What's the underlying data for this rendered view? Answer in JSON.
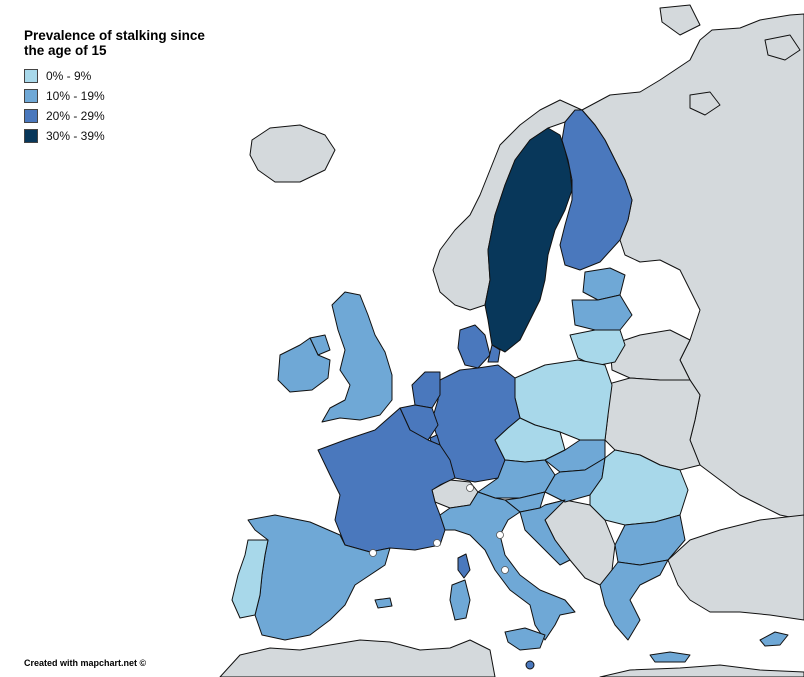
{
  "legend": {
    "title": "Prevalence of stalking since the age of 15",
    "items": [
      {
        "label": "0% - 9%",
        "color": "#a8d8ea"
      },
      {
        "label": "10% - 19%",
        "color": "#6fa8d6"
      },
      {
        "label": "20% - 29%",
        "color": "#4a78bd"
      },
      {
        "label": "30% - 39%",
        "color": "#08375a"
      }
    ]
  },
  "credit": "Created with mapchart.net ©",
  "colors": {
    "no_data": "#d4d9dc",
    "sea": "#ffffff",
    "border": "#111111"
  },
  "map": {
    "countries": [
      {
        "name": "Sweden",
        "category": "30% - 39%"
      },
      {
        "name": "Finland",
        "category": "20% - 29%"
      },
      {
        "name": "Denmark",
        "category": "20% - 29%"
      },
      {
        "name": "Netherlands",
        "category": "20% - 29%"
      },
      {
        "name": "Belgium",
        "category": "20% - 29%"
      },
      {
        "name": "Luxembourg",
        "category": "20% - 29%"
      },
      {
        "name": "Germany",
        "category": "20% - 29%"
      },
      {
        "name": "France",
        "category": "20% - 29%"
      },
      {
        "name": "Malta",
        "category": "20% - 29%"
      },
      {
        "name": "United Kingdom",
        "category": "10% - 19%"
      },
      {
        "name": "Ireland",
        "category": "10% - 19%"
      },
      {
        "name": "Spain",
        "category": "10% - 19%"
      },
      {
        "name": "Italy",
        "category": "10% - 19%"
      },
      {
        "name": "Austria",
        "category": "10% - 19%"
      },
      {
        "name": "Slovenia",
        "category": "10% - 19%"
      },
      {
        "name": "Croatia",
        "category": "10% - 19%"
      },
      {
        "name": "Hungary",
        "category": "10% - 19%"
      },
      {
        "name": "Slovakia",
        "category": "10% - 19%"
      },
      {
        "name": "Estonia",
        "category": "10% - 19%"
      },
      {
        "name": "Latvia",
        "category": "10% - 19%"
      },
      {
        "name": "Bulgaria",
        "category": "10% - 19%"
      },
      {
        "name": "Greece",
        "category": "10% - 19%"
      },
      {
        "name": "Cyprus",
        "category": "10% - 19%"
      },
      {
        "name": "Portugal",
        "category": "0% - 9%"
      },
      {
        "name": "Poland",
        "category": "0% - 9%"
      },
      {
        "name": "Czechia",
        "category": "0% - 9%"
      },
      {
        "name": "Lithuania",
        "category": "0% - 9%"
      },
      {
        "name": "Romania",
        "category": "0% - 9%"
      }
    ]
  }
}
